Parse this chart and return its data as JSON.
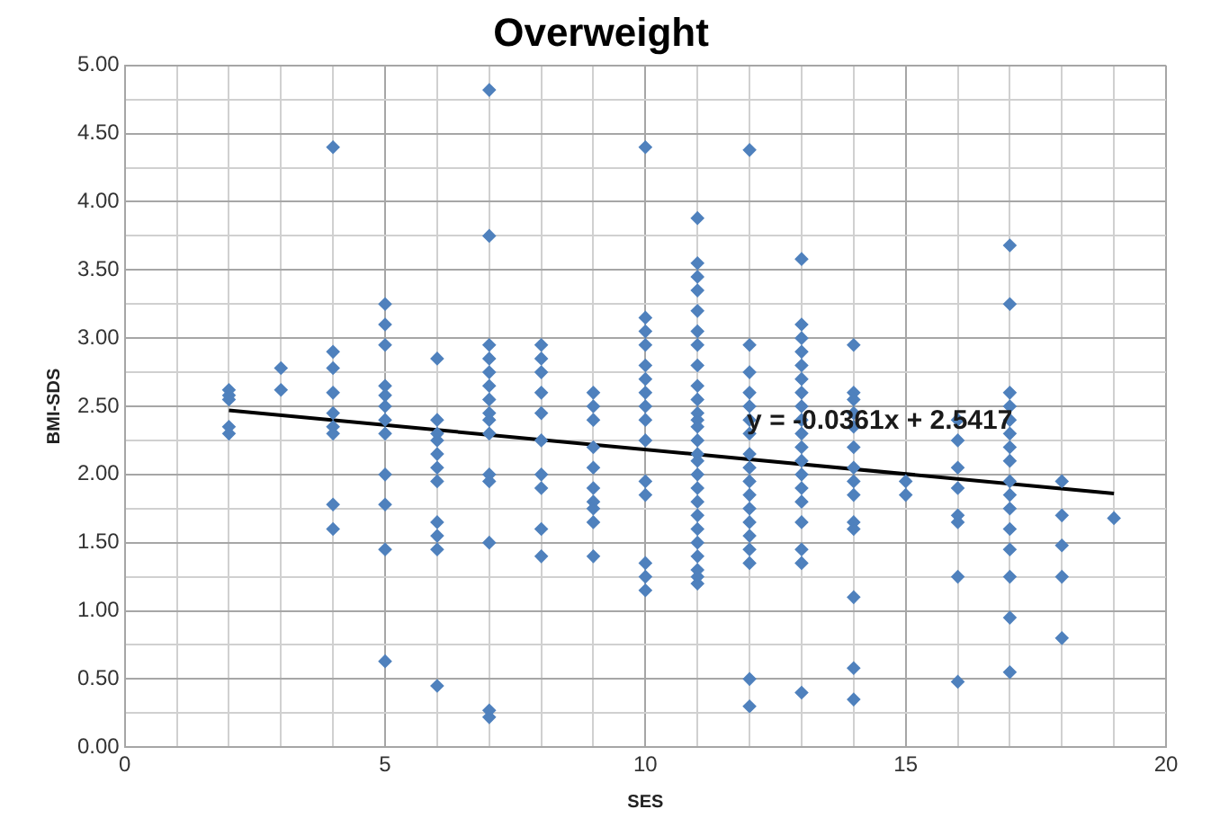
{
  "chart_data": {
    "type": "scatter",
    "title": "Overweight",
    "xlabel": "SES",
    "ylabel": "BMI-SDS",
    "marker": "diamond",
    "grid": true,
    "legend": false,
    "xlim": [
      0,
      20
    ],
    "ylim": [
      0,
      5
    ],
    "xticks": [
      0,
      {
        "value": 1,
        "label": null
      },
      {
        "value": 2,
        "label": null
      },
      {
        "value": 3,
        "label": null
      },
      {
        "value": 4,
        "label": null
      },
      5,
      {
        "value": 6,
        "label": null
      },
      {
        "value": 7,
        "label": null
      },
      {
        "value": 8,
        "label": null
      },
      {
        "value": 9,
        "label": null
      },
      10,
      {
        "value": 11,
        "label": null
      },
      {
        "value": 12,
        "label": null
      },
      {
        "value": 13,
        "label": null
      },
      {
        "value": 14,
        "label": null
      },
      15,
      {
        "value": 16,
        "label": null
      },
      {
        "value": 17,
        "label": null
      },
      {
        "value": 18,
        "label": null
      },
      {
        "value": 19,
        "label": null
      },
      20
    ],
    "yticks": [
      {
        "value": 0,
        "label": "0.00"
      },
      {
        "value": 0.25,
        "label": null
      },
      {
        "value": 0.5,
        "label": "0.50"
      },
      {
        "value": 0.75,
        "label": null
      },
      {
        "value": 1,
        "label": "1.00"
      },
      {
        "value": 1.25,
        "label": null
      },
      {
        "value": 1.5,
        "label": "1.50"
      },
      {
        "value": 1.75,
        "label": null
      },
      {
        "value": 2,
        "label": "2.00"
      },
      {
        "value": 2.25,
        "label": null
      },
      {
        "value": 2.5,
        "label": "2.50"
      },
      {
        "value": 2.75,
        "label": null
      },
      {
        "value": 3,
        "label": "3.00"
      },
      {
        "value": 3.25,
        "label": null
      },
      {
        "value": 3.5,
        "label": "3.50"
      },
      {
        "value": 3.75,
        "label": null
      },
      {
        "value": 4,
        "label": "4.00"
      },
      {
        "value": 4.25,
        "label": null
      },
      {
        "value": 4.5,
        "label": "4.50"
      },
      {
        "value": 4.75,
        "label": null
      },
      {
        "value": 5,
        "label": "5.00"
      }
    ],
    "annotations": [
      {
        "text": "y = -0.0361x + 2.5417",
        "x": 14.5,
        "y": 2.1
      }
    ],
    "series": [
      {
        "color": "#4f81bd",
        "x": [
          2,
          2,
          2,
          2,
          2,
          3,
          3,
          4,
          4,
          4,
          4,
          4,
          4,
          4,
          4,
          4,
          5,
          5,
          5,
          5,
          5,
          5,
          5,
          5,
          5,
          5,
          5,
          5,
          6,
          6,
          6,
          6,
          6,
          6,
          6,
          6,
          6,
          6,
          6,
          7,
          7,
          7,
          7,
          7,
          7,
          7,
          7,
          7,
          7,
          7,
          7,
          7,
          7,
          7,
          8,
          8,
          8,
          8,
          8,
          8,
          8,
          8,
          8,
          8,
          9,
          9,
          9,
          9,
          9,
          9,
          9,
          9,
          9,
          9,
          10,
          10,
          10,
          10,
          10,
          10,
          10,
          10,
          10,
          10,
          10,
          10,
          10,
          10,
          10,
          11,
          11,
          11,
          11,
          11,
          11,
          11,
          11,
          11,
          11,
          11,
          11,
          11,
          11,
          11,
          11,
          11,
          11,
          11,
          11,
          11,
          11,
          11,
          11,
          11,
          11,
          12,
          12,
          12,
          12,
          12,
          12,
          12,
          12,
          12,
          12,
          12,
          12,
          12,
          12,
          12,
          12,
          12,
          12,
          13,
          13,
          13,
          13,
          13,
          13,
          13,
          13,
          13,
          13,
          13,
          13,
          13,
          13,
          13,
          13,
          13,
          13,
          13,
          14,
          14,
          14,
          14,
          14,
          14,
          14,
          14,
          14,
          14,
          14,
          14,
          14,
          14,
          15,
          15,
          16,
          16,
          16,
          16,
          16,
          16,
          16,
          16,
          17,
          17,
          17,
          17,
          17,
          17,
          17,
          17,
          17,
          17,
          17,
          17,
          17,
          17,
          17,
          17,
          18,
          18,
          18,
          18,
          18,
          19
        ],
        "values": [
          2.62,
          2.58,
          2.55,
          2.35,
          2.3,
          2.78,
          2.62,
          4.4,
          2.9,
          2.78,
          2.6,
          2.45,
          2.35,
          2.3,
          1.78,
          1.6,
          3.25,
          3.1,
          2.95,
          2.65,
          2.58,
          2.5,
          2.4,
          2.3,
          2.0,
          1.78,
          1.45,
          0.63,
          2.85,
          2.4,
          2.3,
          2.25,
          2.15,
          2.05,
          1.95,
          1.65,
          1.55,
          1.45,
          0.45,
          4.82,
          3.75,
          2.95,
          2.85,
          2.75,
          2.65,
          2.55,
          2.45,
          2.4,
          2.3,
          2.0,
          1.95,
          1.5,
          0.27,
          0.22,
          2.95,
          2.85,
          2.75,
          2.6,
          2.45,
          2.25,
          2.0,
          1.9,
          1.6,
          1.4,
          2.6,
          2.5,
          2.4,
          2.2,
          2.05,
          1.9,
          1.8,
          1.75,
          1.65,
          1.4,
          4.4,
          3.15,
          3.05,
          2.95,
          2.8,
          2.7,
          2.6,
          2.5,
          2.4,
          2.25,
          1.95,
          1.85,
          1.35,
          1.25,
          1.15,
          3.88,
          3.55,
          3.45,
          3.35,
          3.2,
          3.05,
          2.95,
          2.8,
          2.65,
          2.55,
          2.45,
          2.4,
          2.35,
          2.25,
          2.15,
          2.1,
          2.0,
          1.9,
          1.8,
          1.7,
          1.6,
          1.5,
          1.4,
          1.3,
          1.25,
          1.2,
          4.38,
          2.95,
          2.75,
          2.6,
          2.5,
          2.4,
          2.3,
          2.15,
          2.05,
          1.95,
          1.85,
          1.75,
          1.65,
          1.55,
          1.45,
          1.35,
          0.5,
          0.3,
          3.58,
          3.1,
          3.0,
          2.9,
          2.8,
          2.7,
          2.6,
          2.5,
          2.4,
          2.3,
          2.2,
          2.1,
          2.0,
          1.9,
          1.8,
          1.65,
          1.45,
          1.35,
          0.4,
          2.95,
          2.6,
          2.55,
          2.45,
          2.35,
          2.2,
          2.05,
          1.95,
          1.85,
          1.65,
          1.6,
          1.1,
          0.58,
          0.35,
          1.95,
          1.85,
          2.4,
          2.25,
          2.05,
          1.9,
          1.7,
          1.65,
          1.25,
          0.48,
          3.68,
          3.25,
          2.6,
          2.5,
          2.4,
          2.3,
          2.2,
          2.1,
          1.95,
          1.85,
          1.75,
          1.6,
          1.45,
          1.25,
          0.95,
          0.55,
          1.95,
          1.7,
          1.48,
          1.25,
          0.8,
          1.68
        ]
      },
      {
        "type": "line",
        "color": "#000000",
        "marker": "none",
        "x": [
          2,
          19
        ],
        "values": [
          2.47,
          1.86
        ]
      }
    ]
  }
}
